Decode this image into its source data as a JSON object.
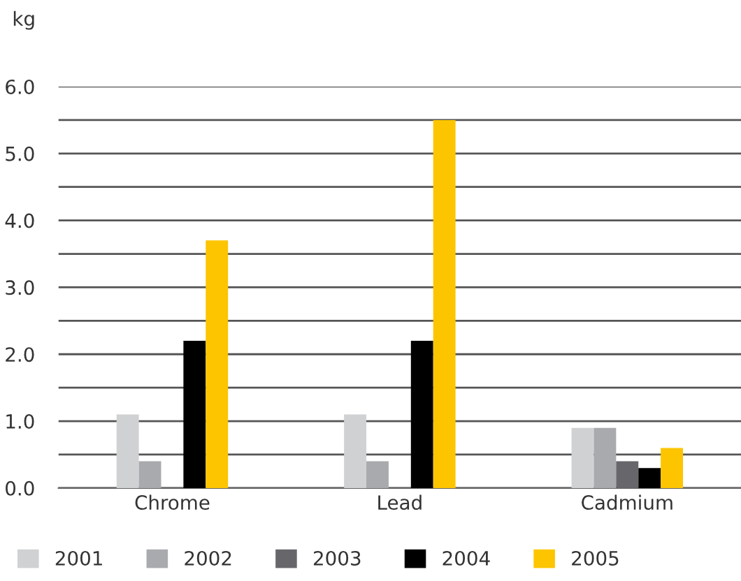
{
  "chart_data": {
    "type": "bar",
    "ylabel": "kg",
    "categories": [
      "Chrome",
      "Lead",
      "Cadmium"
    ],
    "series": [
      {
        "name": "2001",
        "color": "#d0d1d3",
        "values": [
          1.1,
          1.1,
          0.9
        ]
      },
      {
        "name": "2002",
        "color": "#a9aaad",
        "values": [
          0.4,
          0.4,
          0.9
        ]
      },
      {
        "name": "2003",
        "color": "#67676b",
        "values": [
          0,
          0,
          0.4
        ]
      },
      {
        "name": "2004",
        "color": "#000000",
        "values": [
          2.2,
          2.2,
          0.3
        ]
      },
      {
        "name": "2005",
        "color": "#fcc500",
        "values": [
          3.7,
          5.5,
          0.6
        ]
      }
    ],
    "ylim": [
      0,
      6
    ],
    "yticks": [
      {
        "value": 0,
        "label": "0.0"
      },
      {
        "value": 0.5,
        "label": null
      },
      {
        "value": 1,
        "label": "1.0"
      },
      {
        "value": 1.5,
        "label": null
      },
      {
        "value": 2,
        "label": "2.0"
      },
      {
        "value": 2.5,
        "label": null
      },
      {
        "value": 3,
        "label": "3.0"
      },
      {
        "value": 3.5,
        "label": null
      },
      {
        "value": 4,
        "label": "4.0"
      },
      {
        "value": 4.5,
        "label": null
      },
      {
        "value": 5,
        "label": "5.0"
      },
      {
        "value": 5.5,
        "label": null
      },
      {
        "value": 6,
        "label": "6.0"
      }
    ],
    "grid": "y",
    "legend": "bottom"
  }
}
